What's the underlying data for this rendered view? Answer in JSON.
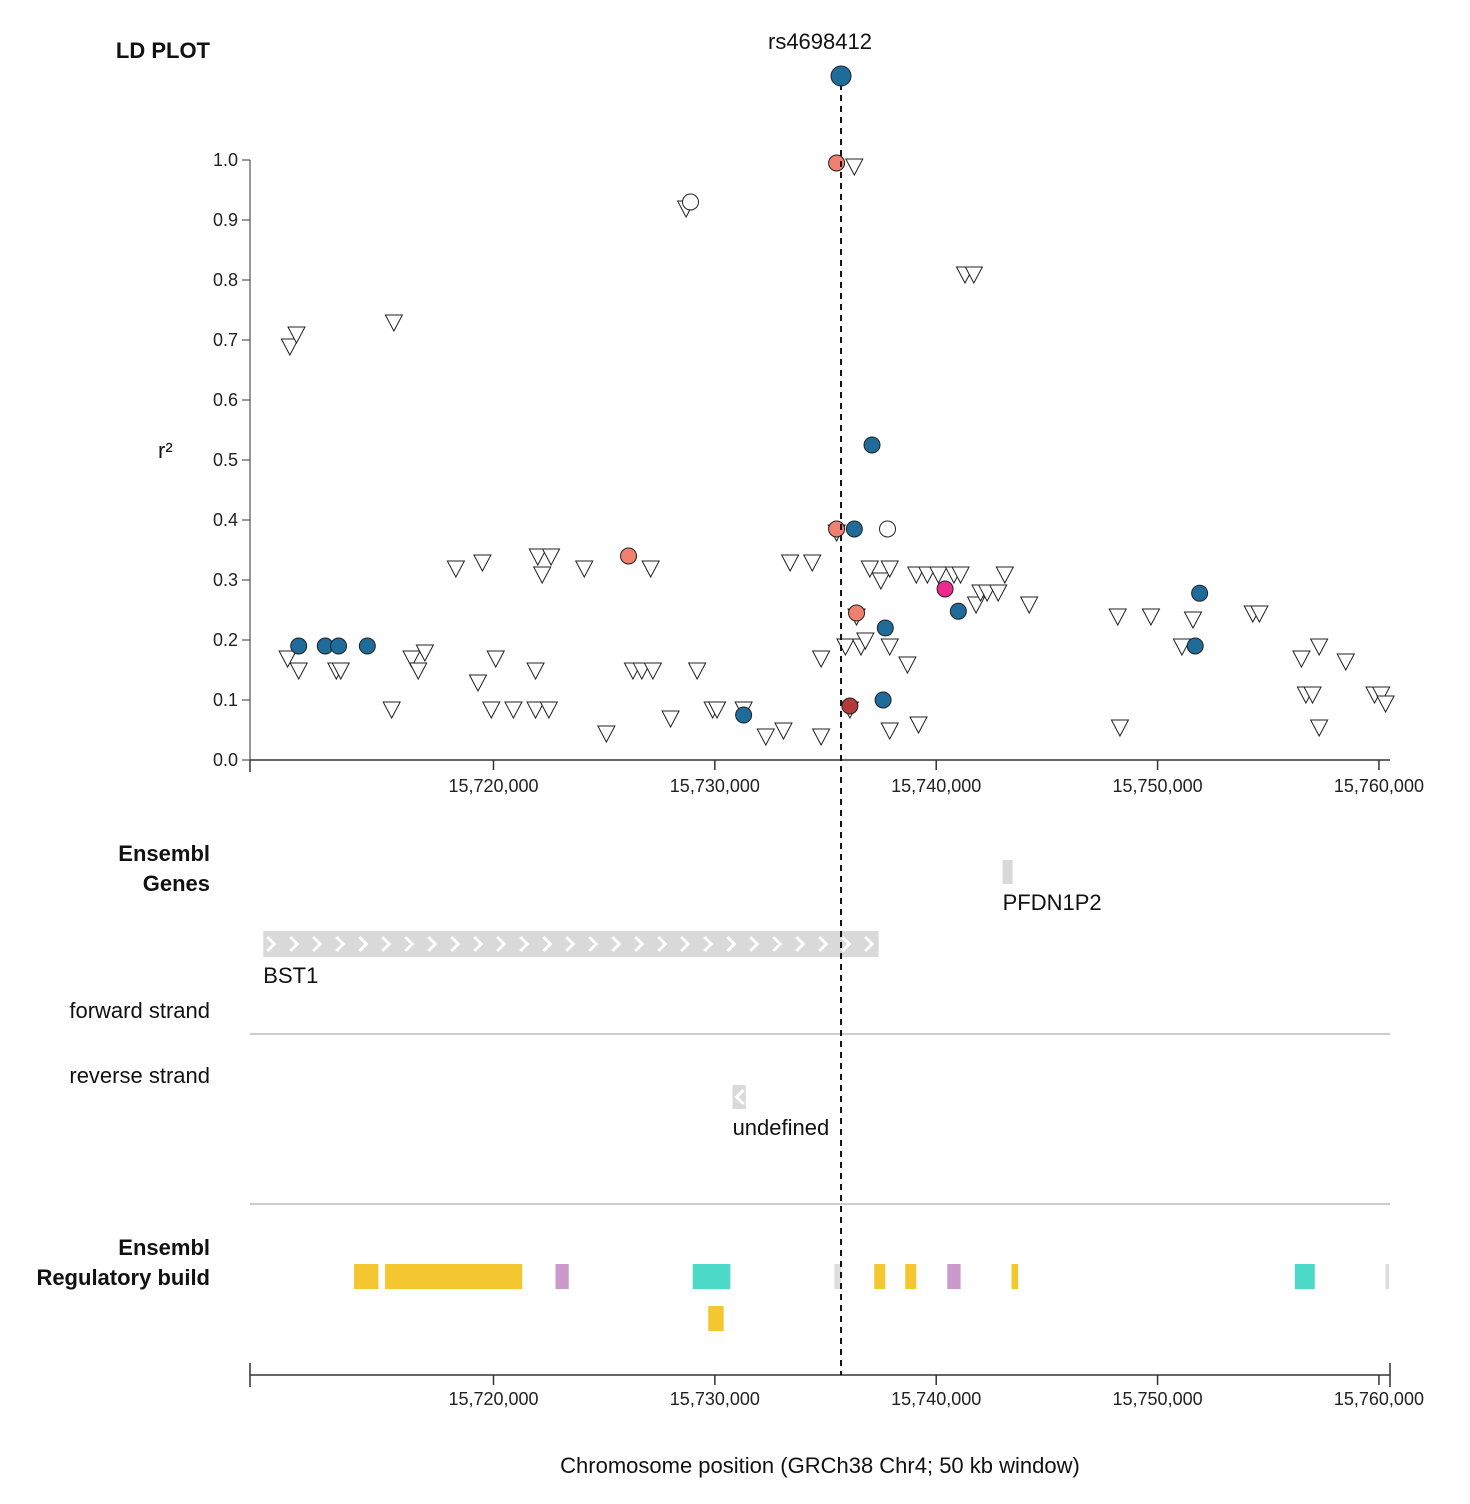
{
  "panel_titles": {
    "ld_plot": "LD PLOT",
    "genes_line1": "Ensembl",
    "genes_line2": "Genes",
    "forward_strand": "forward strand",
    "reverse_strand": "reverse strand",
    "reg_line1": "Ensembl",
    "reg_line2": "Regulatory build"
  },
  "chart_data": {
    "type": "scatter",
    "lead_snp": {
      "label": "rs4698412",
      "position": 15735700
    },
    "ylabel": "r²",
    "xlabel": "Chromosome position (GRCh38 Chr4; 50 kb window)",
    "xlim": [
      15709000,
      15760500
    ],
    "ylim": [
      0,
      1
    ],
    "y_ticks": [
      0.0,
      0.1,
      0.2,
      0.3,
      0.4,
      0.5,
      0.6,
      0.7,
      0.8,
      0.9,
      1.0
    ],
    "y_tick_labels": [
      "0.0",
      "0.1",
      "0.2",
      "0.3",
      "0.4",
      "0.5",
      "0.6",
      "0.7",
      "0.8",
      "0.9",
      "1.0"
    ],
    "x_ticks": [
      15720000,
      15730000,
      15740000,
      15750000,
      15760000
    ],
    "x_tick_labels": [
      "15,720,000",
      "15,730,000",
      "15,740,000",
      "15,750,000",
      "15,760,000"
    ],
    "colors": {
      "blue": "#1f6b9a",
      "salmon": "#f08070",
      "pink": "#ee2b8c",
      "darkred": "#b23a3a",
      "white": "#ffffff"
    },
    "circles": [
      {
        "x": 15711200,
        "y": 0.19,
        "c": "blue"
      },
      {
        "x": 15712400,
        "y": 0.19,
        "c": "blue"
      },
      {
        "x": 15713000,
        "y": 0.19,
        "c": "blue"
      },
      {
        "x": 15714300,
        "y": 0.19,
        "c": "blue"
      },
      {
        "x": 15726100,
        "y": 0.34,
        "c": "salmon"
      },
      {
        "x": 15728900,
        "y": 0.93,
        "c": "white"
      },
      {
        "x": 15731300,
        "y": 0.075,
        "c": "blue"
      },
      {
        "x": 15735500,
        "y": 0.995,
        "c": "salmon"
      },
      {
        "x": 15735500,
        "y": 0.385,
        "c": "salmon"
      },
      {
        "x": 15736100,
        "y": 0.09,
        "c": "darkred"
      },
      {
        "x": 15736300,
        "y": 0.385,
        "c": "blue"
      },
      {
        "x": 15736400,
        "y": 0.245,
        "c": "salmon"
      },
      {
        "x": 15737100,
        "y": 0.525,
        "c": "blue"
      },
      {
        "x": 15737600,
        "y": 0.1,
        "c": "blue"
      },
      {
        "x": 15737700,
        "y": 0.22,
        "c": "blue"
      },
      {
        "x": 15737800,
        "y": 0.385,
        "c": "white"
      },
      {
        "x": 15740400,
        "y": 0.285,
        "c": "pink"
      },
      {
        "x": 15741000,
        "y": 0.248,
        "c": "blue"
      },
      {
        "x": 15751700,
        "y": 0.19,
        "c": "blue"
      },
      {
        "x": 15751900,
        "y": 0.278,
        "c": "blue"
      }
    ],
    "triangles": [
      {
        "x": 15710800,
        "y": 0.69
      },
      {
        "x": 15711100,
        "y": 0.71
      },
      {
        "x": 15710700,
        "y": 0.17
      },
      {
        "x": 15711200,
        "y": 0.15
      },
      {
        "x": 15712900,
        "y": 0.15
      },
      {
        "x": 15713100,
        "y": 0.15
      },
      {
        "x": 15715500,
        "y": 0.73
      },
      {
        "x": 15715400,
        "y": 0.085
      },
      {
        "x": 15716300,
        "y": 0.17
      },
      {
        "x": 15716600,
        "y": 0.15
      },
      {
        "x": 15716900,
        "y": 0.18
      },
      {
        "x": 15718300,
        "y": 0.32
      },
      {
        "x": 15719300,
        "y": 0.13
      },
      {
        "x": 15719500,
        "y": 0.33
      },
      {
        "x": 15719900,
        "y": 0.085
      },
      {
        "x": 15720100,
        "y": 0.17
      },
      {
        "x": 15720900,
        "y": 0.085
      },
      {
        "x": 15721900,
        "y": 0.15
      },
      {
        "x": 15721900,
        "y": 0.085
      },
      {
        "x": 15722000,
        "y": 0.34
      },
      {
        "x": 15722200,
        "y": 0.31
      },
      {
        "x": 15722500,
        "y": 0.085
      },
      {
        "x": 15722600,
        "y": 0.34
      },
      {
        "x": 15724100,
        "y": 0.32
      },
      {
        "x": 15725100,
        "y": 0.045
      },
      {
        "x": 15726300,
        "y": 0.15
      },
      {
        "x": 15726700,
        "y": 0.15
      },
      {
        "x": 15727200,
        "y": 0.15
      },
      {
        "x": 15727100,
        "y": 0.32
      },
      {
        "x": 15728000,
        "y": 0.07
      },
      {
        "x": 15728700,
        "y": 0.92
      },
      {
        "x": 15729200,
        "y": 0.15
      },
      {
        "x": 15729900,
        "y": 0.085
      },
      {
        "x": 15730100,
        "y": 0.085
      },
      {
        "x": 15731300,
        "y": 0.085
      },
      {
        "x": 15732300,
        "y": 0.04
      },
      {
        "x": 15733100,
        "y": 0.05
      },
      {
        "x": 15733400,
        "y": 0.33
      },
      {
        "x": 15734400,
        "y": 0.33
      },
      {
        "x": 15734800,
        "y": 0.17
      },
      {
        "x": 15734800,
        "y": 0.04
      },
      {
        "x": 15735500,
        "y": 0.38
      },
      {
        "x": 15735900,
        "y": 0.19
      },
      {
        "x": 15736100,
        "y": 0.085
      },
      {
        "x": 15736300,
        "y": 0.99
      },
      {
        "x": 15736400,
        "y": 0.24
      },
      {
        "x": 15736600,
        "y": 0.19
      },
      {
        "x": 15736800,
        "y": 0.2
      },
      {
        "x": 15737000,
        "y": 0.32
      },
      {
        "x": 15737500,
        "y": 0.3
      },
      {
        "x": 15737900,
        "y": 0.32
      },
      {
        "x": 15737900,
        "y": 0.19
      },
      {
        "x": 15737900,
        "y": 0.05
      },
      {
        "x": 15738700,
        "y": 0.16
      },
      {
        "x": 15739200,
        "y": 0.06
      },
      {
        "x": 15739100,
        "y": 0.31
      },
      {
        "x": 15739600,
        "y": 0.31
      },
      {
        "x": 15740100,
        "y": 0.31
      },
      {
        "x": 15740800,
        "y": 0.31
      },
      {
        "x": 15741100,
        "y": 0.31
      },
      {
        "x": 15741300,
        "y": 0.81
      },
      {
        "x": 15741700,
        "y": 0.81
      },
      {
        "x": 15741800,
        "y": 0.26
      },
      {
        "x": 15742000,
        "y": 0.28
      },
      {
        "x": 15742300,
        "y": 0.28
      },
      {
        "x": 15742800,
        "y": 0.28
      },
      {
        "x": 15743100,
        "y": 0.31
      },
      {
        "x": 15744200,
        "y": 0.26
      },
      {
        "x": 15748200,
        "y": 0.24
      },
      {
        "x": 15748300,
        "y": 0.055
      },
      {
        "x": 15749700,
        "y": 0.24
      },
      {
        "x": 15751100,
        "y": 0.19
      },
      {
        "x": 15751600,
        "y": 0.235
      },
      {
        "x": 15754300,
        "y": 0.245
      },
      {
        "x": 15754600,
        "y": 0.245
      },
      {
        "x": 15756500,
        "y": 0.17
      },
      {
        "x": 15756700,
        "y": 0.11
      },
      {
        "x": 15757000,
        "y": 0.11
      },
      {
        "x": 15757300,
        "y": 0.055
      },
      {
        "x": 15757300,
        "y": 0.19
      },
      {
        "x": 15758500,
        "y": 0.165
      },
      {
        "x": 15759800,
        "y": 0.11
      },
      {
        "x": 15760100,
        "y": 0.11
      },
      {
        "x": 15760300,
        "y": 0.095
      }
    ]
  },
  "genes": [
    {
      "name": "BST1",
      "start": 15709600,
      "end": 15737400,
      "strand": "+",
      "label_side": "left"
    },
    {
      "name": "PFDN1P2",
      "start": 15743000,
      "end": 15743400,
      "strand": "+",
      "label_side": "left"
    },
    {
      "name": "undefined",
      "start": 15730800,
      "end": 15731400,
      "strand": "-",
      "label_side": "left"
    }
  ],
  "regulatory": {
    "colors": {
      "yellow": "#f4c731",
      "pink": "#cc99cc",
      "cyan": "#4dd9c8",
      "grey": "#dddddd"
    },
    "row1": [
      {
        "start": 15713700,
        "end": 15714800,
        "c": "yellow"
      },
      {
        "start": 15715100,
        "end": 15721300,
        "c": "yellow"
      },
      {
        "start": 15722800,
        "end": 15723400,
        "c": "pink"
      },
      {
        "start": 15729000,
        "end": 15730700,
        "c": "cyan"
      },
      {
        "start": 15735400,
        "end": 15735700,
        "c": "grey"
      },
      {
        "start": 15737200,
        "end": 15737700,
        "c": "yellow"
      },
      {
        "start": 15738600,
        "end": 15739100,
        "c": "yellow"
      },
      {
        "start": 15740500,
        "end": 15741100,
        "c": "pink"
      },
      {
        "start": 15743400,
        "end": 15743700,
        "c": "yellow"
      },
      {
        "start": 15756200,
        "end": 15757100,
        "c": "cyan"
      },
      {
        "start": 15760300,
        "end": 15760450,
        "c": "grey"
      }
    ],
    "row2": [
      {
        "start": 15729700,
        "end": 15730400,
        "c": "yellow"
      }
    ]
  }
}
